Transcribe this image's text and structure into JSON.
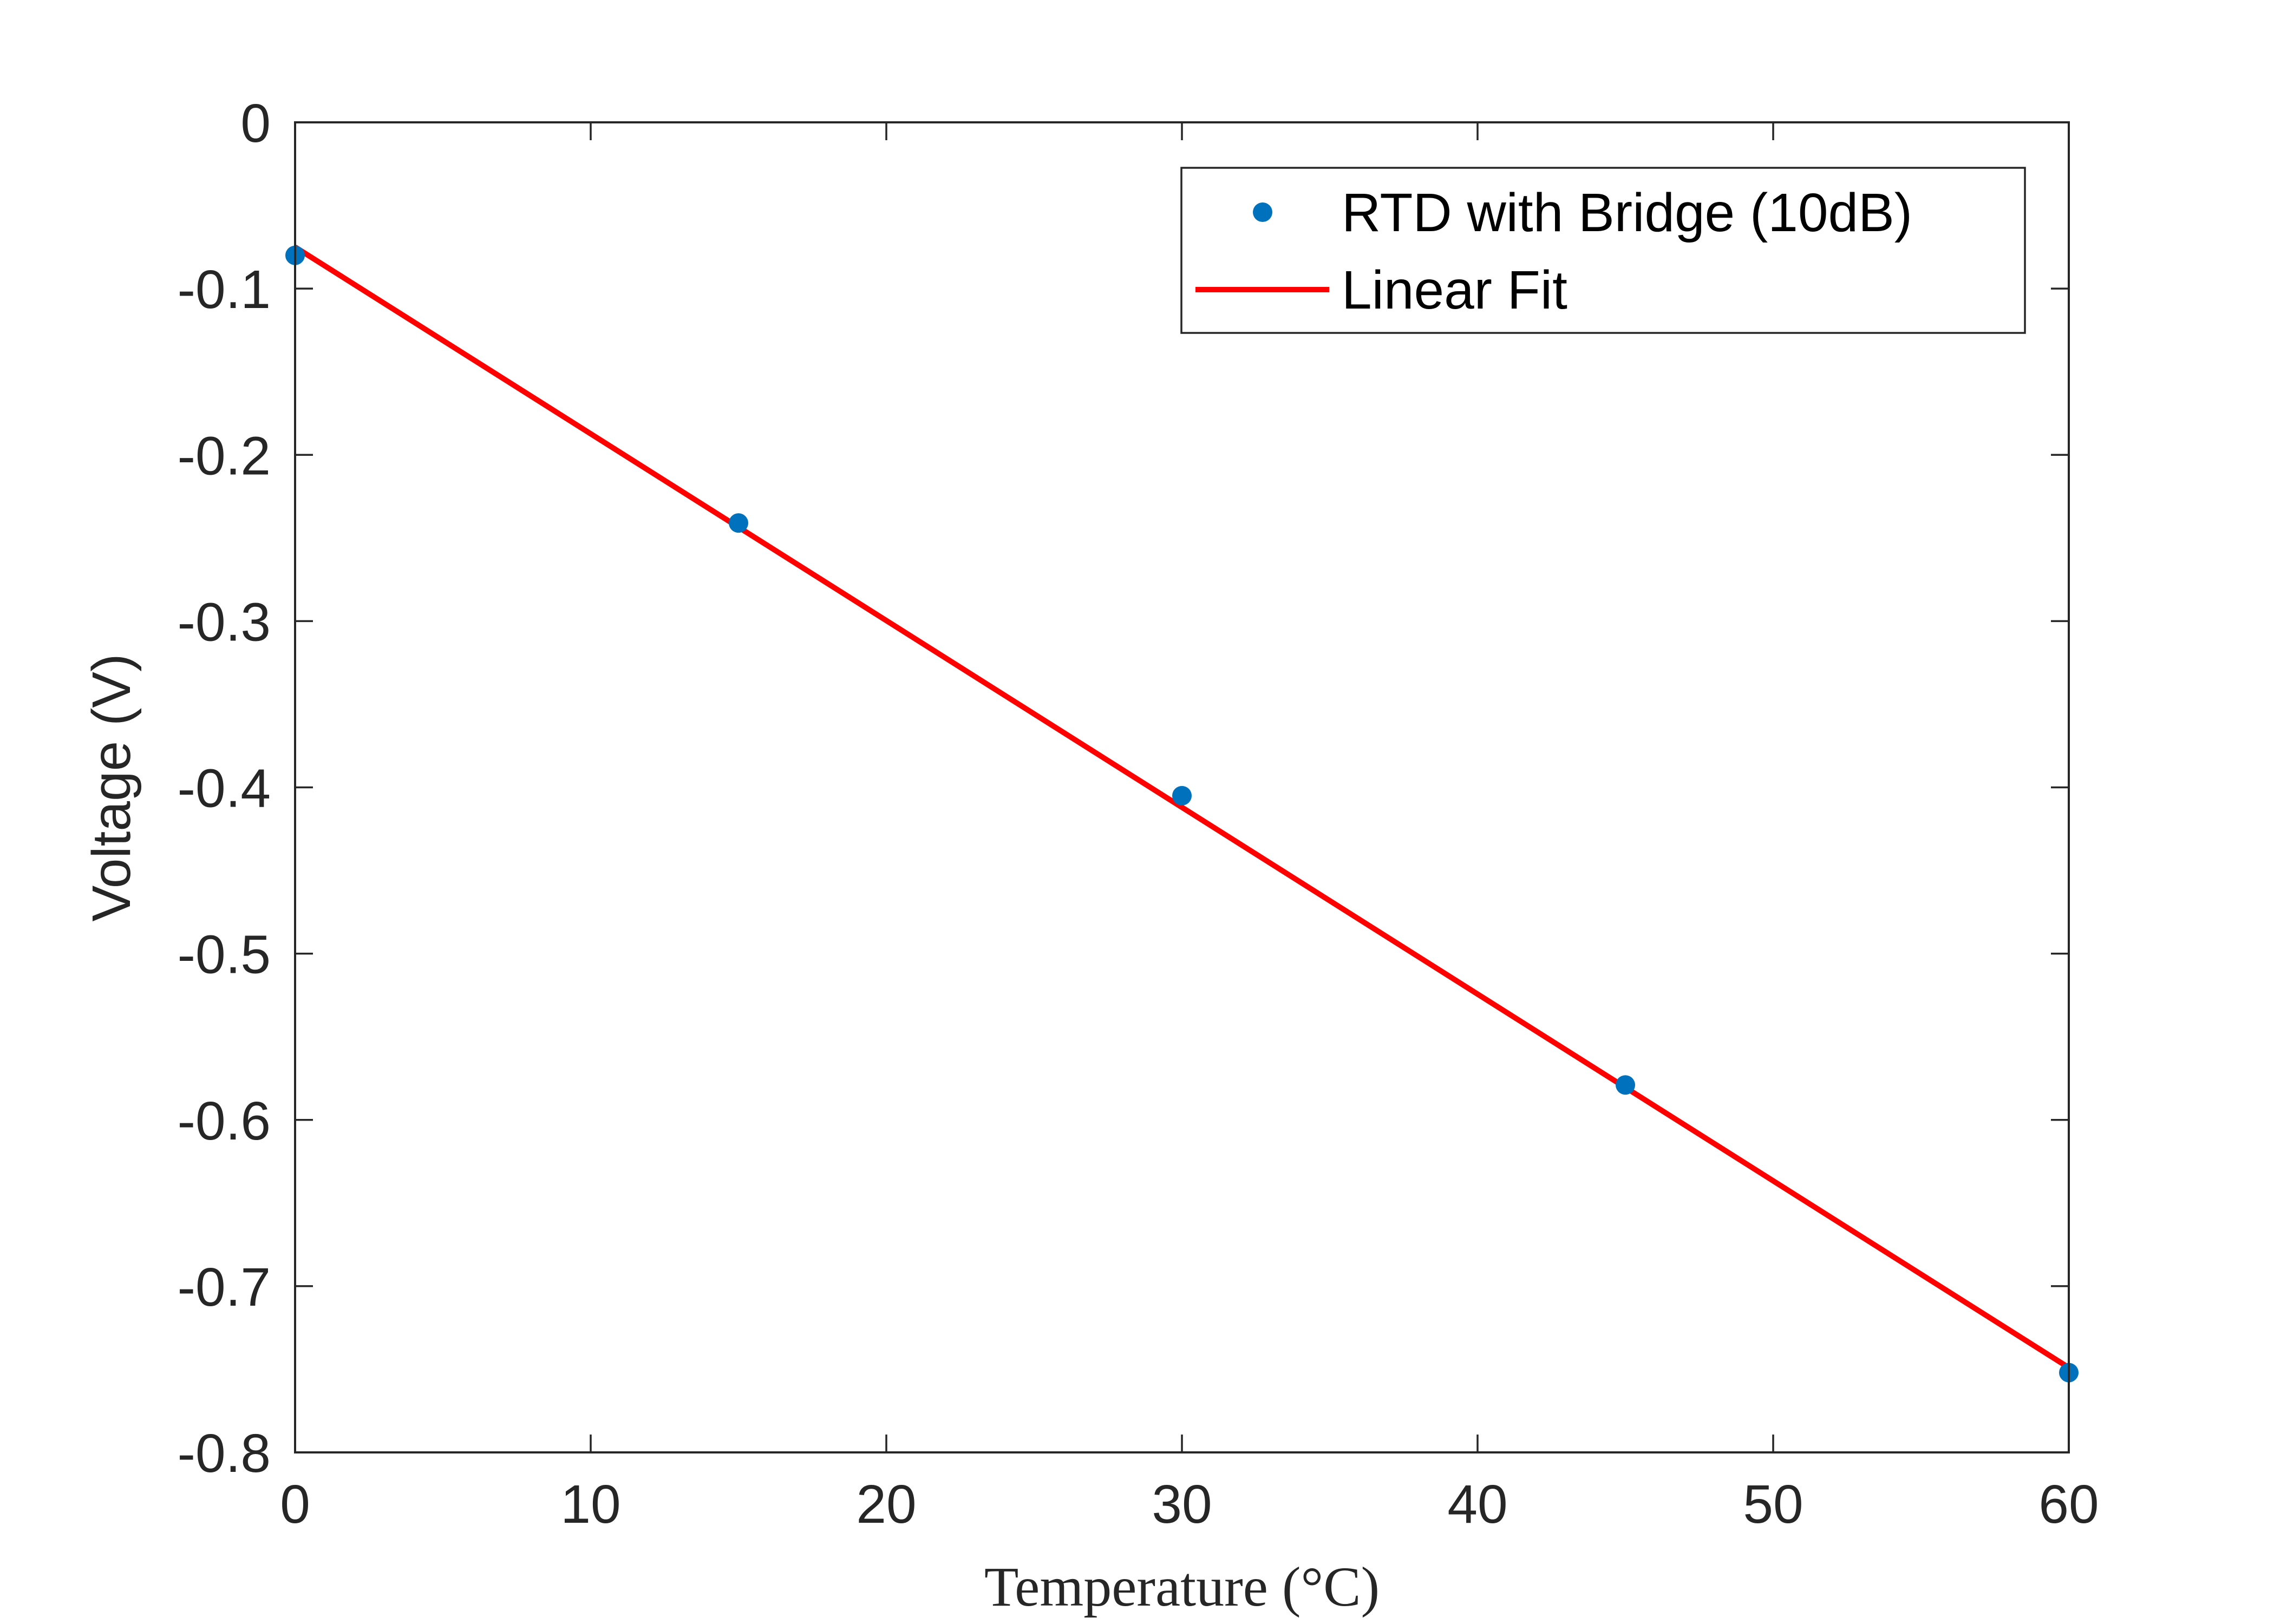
{
  "chart_data": {
    "type": "scatter",
    "title": "",
    "xlabel": "Temperature (°C)",
    "ylabel": "Voltage (V)",
    "xlim": [
      0,
      60
    ],
    "ylim": [
      -0.8,
      0
    ],
    "xticks": [
      0,
      10,
      20,
      30,
      40,
      50,
      60
    ],
    "yticks": [
      0,
      -0.1,
      -0.2,
      -0.3,
      -0.4,
      -0.5,
      -0.6,
      -0.7,
      -0.8
    ],
    "xtick_labels": [
      "0",
      "10",
      "20",
      "30",
      "40",
      "50",
      "60"
    ],
    "ytick_labels": [
      "0",
      "-0.1",
      "-0.2",
      "-0.3",
      "-0.4",
      "-0.5",
      "-0.6",
      "-0.7",
      "-0.8"
    ],
    "grid": false,
    "legend_position": "top-right",
    "series": [
      {
        "name": "RTD with Bridge (10dB)",
        "kind": "markers",
        "color": "#0072BD",
        "x": [
          0,
          15,
          30,
          45,
          60
        ],
        "y": [
          -0.08,
          -0.241,
          -0.405,
          -0.579,
          -0.752
        ]
      },
      {
        "name": "Linear Fit",
        "kind": "line",
        "color": "#FF0000",
        "x": [
          0,
          60
        ],
        "y": [
          -0.075,
          -0.749
        ]
      }
    ]
  }
}
